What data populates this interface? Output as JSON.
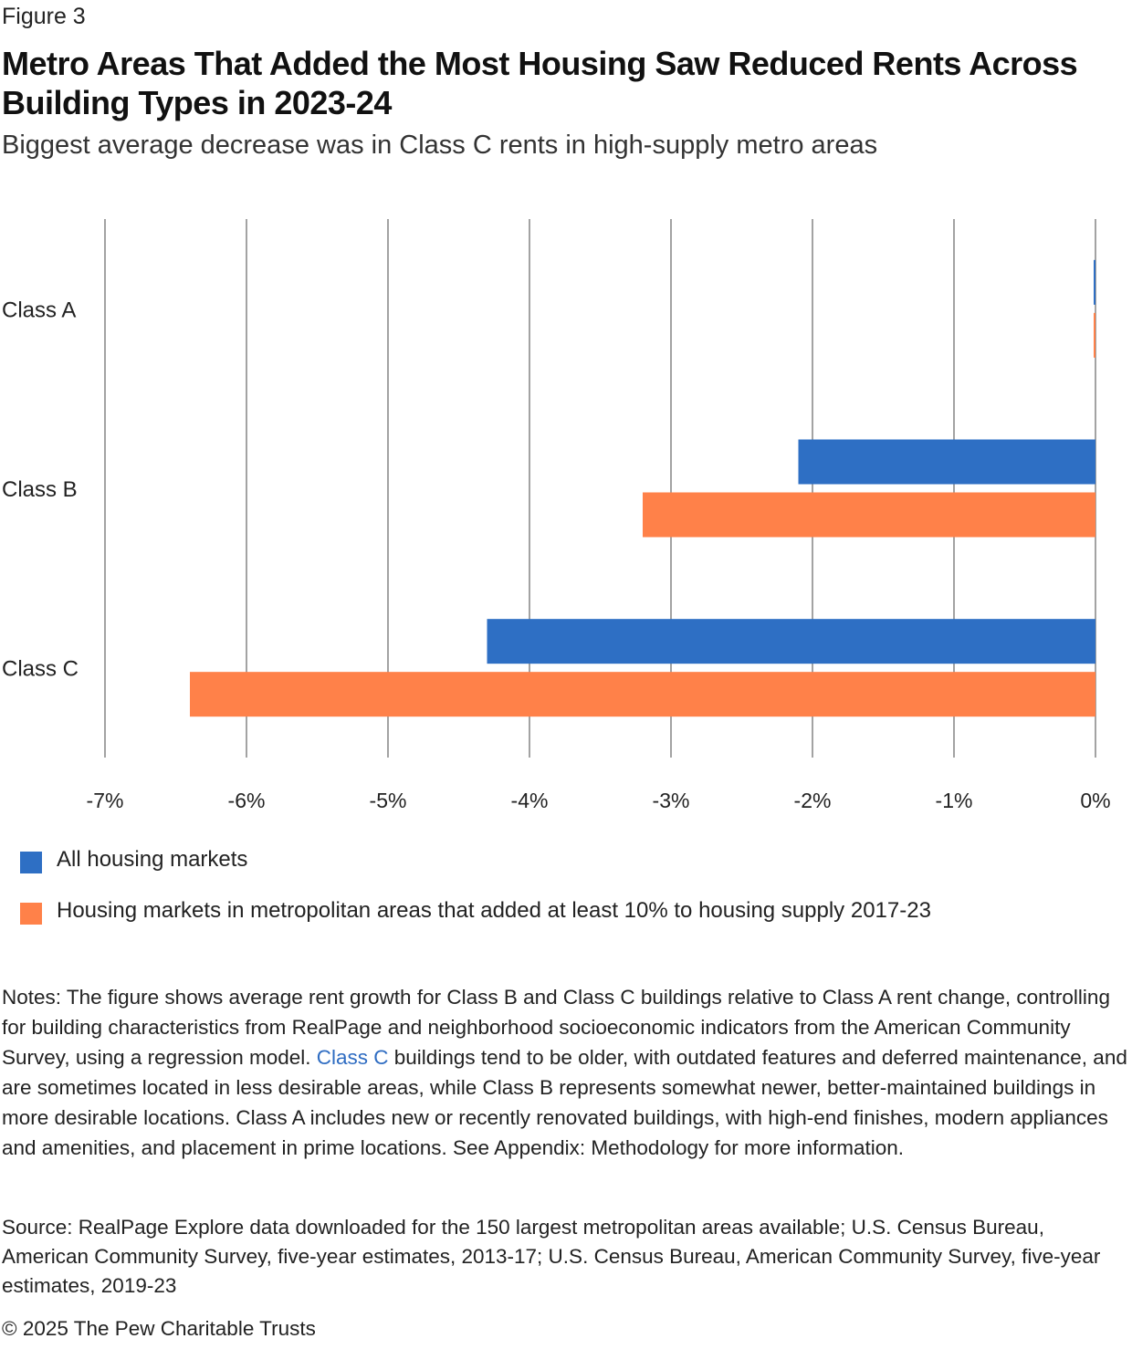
{
  "figure_label": "Figure 3",
  "title": "Metro Areas That Added the Most Housing Saw Reduced Rents Across Building Types in 2023-24",
  "subtitle": "Biggest average decrease was in Class C rents in high-supply metro areas",
  "chart_data": {
    "type": "bar",
    "orientation": "horizontal",
    "categories": [
      "Class A",
      "Class B",
      "Class C"
    ],
    "series": [
      {
        "name": "All housing markets",
        "color": "#2e6fc4",
        "values": [
          0.0,
          -2.1,
          -4.3
        ]
      },
      {
        "name": "Housing markets in metropolitan areas that added at least 10% to housing supply 2017-23",
        "color": "#ff8149",
        "values": [
          0.0,
          -3.2,
          -6.4
        ]
      }
    ],
    "xlim": [
      -7,
      0
    ],
    "x_ticks": [
      -7,
      -6,
      -5,
      -4,
      -3,
      -2,
      -1,
      0
    ],
    "x_tick_labels": [
      "-7%",
      "-6%",
      "-5%",
      "-4%",
      "-3%",
      "-2%",
      "-1%",
      "0%"
    ],
    "grid": true,
    "legend_position": "bottom"
  },
  "notes": {
    "before_link": "Notes: The figure shows average rent growth for Class B and Class C buildings relative to Class A rent change, controlling for building characteristics from RealPage and neighborhood socioeconomic indicators from the American Community Survey, using a regression model. ",
    "link_text": "Class C",
    "after_link": " buildings tend to be older, with outdated features and deferred maintenance, and are sometimes located in less desirable areas, while Class B represents somewhat newer, better-maintained buildings in more desirable locations. Class A includes new or recently renovated buildings, with high-end finishes, modern appliances and amenities, and placement in prime locations. See Appendix: Methodology for more information."
  },
  "source": "Source: RealPage Explore data downloaded for the 150 largest metropolitan areas available; U.S. Census Bureau, American Community Survey, five-year estimates, 2013-17; U.S. Census Bureau, American Community Survey, five-year estimates, 2019-23",
  "copyright": "© 2025 The Pew Charitable Trusts"
}
